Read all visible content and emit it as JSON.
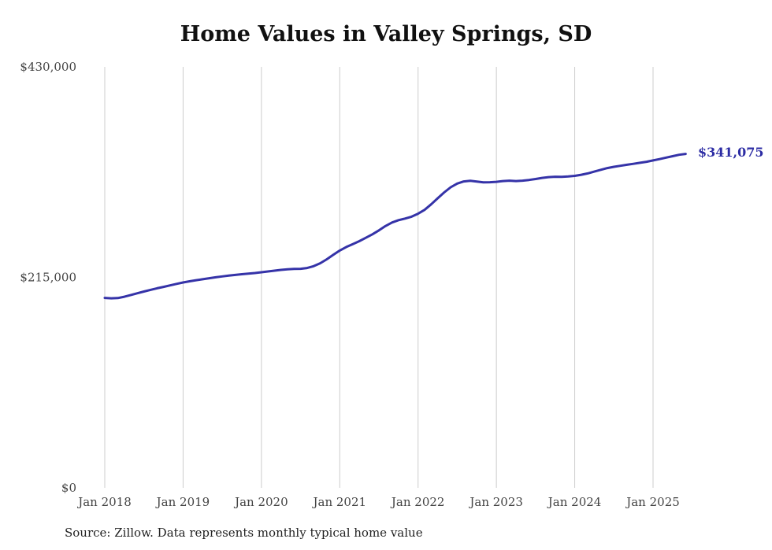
{
  "title": "Home Values in Valley Springs, SD",
  "source_note": "Source: Zillow. Data represents monthly typical home value",
  "end_label": "$341,075",
  "colors": {
    "line": "#3533a8",
    "grid": "#cccccc",
    "end_label": "#2d2da4",
    "axis_text": "#444444",
    "title": "#111111"
  },
  "chart_data": {
    "type": "line",
    "title": "Home Values in Valley Springs, SD",
    "xlabel": "",
    "ylabel": "",
    "ylim": [
      0,
      430000
    ],
    "grid": "vertical-only",
    "legend_position": "none",
    "y_ticks": [
      {
        "label": "$0",
        "value": 0
      },
      {
        "label": "$215,000",
        "value": 215000
      },
      {
        "label": "$430,000",
        "value": 430000
      }
    ],
    "x_ticks": [
      {
        "label": "Jan 2018",
        "month": 0
      },
      {
        "label": "Jan 2019",
        "month": 12
      },
      {
        "label": "Jan 2020",
        "month": 24
      },
      {
        "label": "Jan 2021",
        "month": 36
      },
      {
        "label": "Jan 2022",
        "month": 48
      },
      {
        "label": "Jan 2023",
        "month": 60
      },
      {
        "label": "Jan 2024",
        "month": 72
      },
      {
        "label": "Jan 2025",
        "month": 84
      }
    ],
    "series": [
      {
        "name": "Monthly typical home value",
        "start": "Jan 2018",
        "frequency": "monthly",
        "values": [
          194000,
          193600,
          193900,
          195200,
          197000,
          198800,
          200500,
          202200,
          203800,
          205300,
          206800,
          208300,
          209800,
          211000,
          212100,
          213100,
          214100,
          215100,
          216000,
          216800,
          217500,
          218200,
          218800,
          219400,
          220200,
          221000,
          221800,
          222600,
          223200,
          223600,
          223800,
          224600,
          226400,
          229400,
          233400,
          238000,
          242400,
          246000,
          249000,
          252000,
          255400,
          259000,
          263000,
          267400,
          271000,
          273400,
          275000,
          277000,
          280000,
          284000,
          289600,
          295800,
          301800,
          307000,
          310800,
          313000,
          313600,
          312800,
          312000,
          312200,
          312600,
          313400,
          313800,
          313400,
          313800,
          314500,
          315500,
          316600,
          317400,
          317800,
          317700,
          318000,
          318700,
          319800,
          321200,
          323000,
          324900,
          326600,
          327900,
          329000,
          330000,
          331000,
          332000,
          333100,
          334400,
          335800,
          337300,
          338800,
          340200,
          341075
        ]
      }
    ],
    "end_annotation": {
      "label": "$341,075",
      "value": 341075,
      "month": 89
    }
  }
}
